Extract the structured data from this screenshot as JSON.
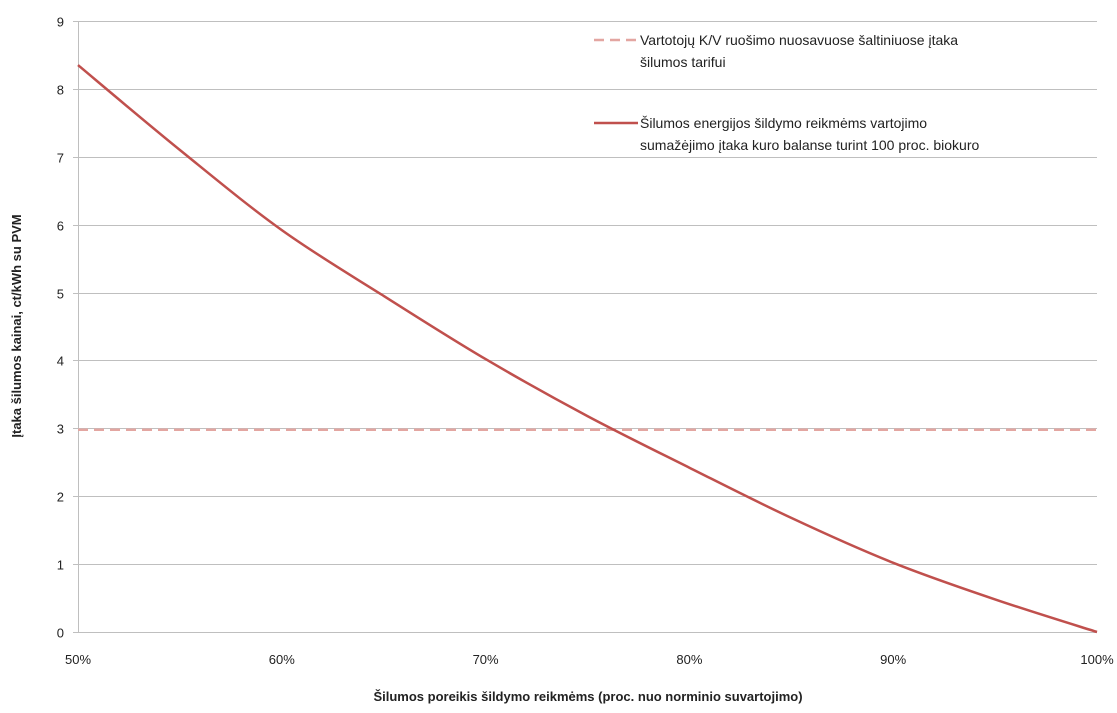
{
  "chart_data": {
    "type": "line",
    "title": "",
    "xlabel": "Šilumos poreikis šildymo reikmėms (proc. nuo norminio suvartojimo)",
    "ylabel": "Įtaka šilumos kainai, ct/kWh su PVM",
    "xlim": [
      50,
      100
    ],
    "ylim": [
      0,
      9
    ],
    "x_ticks": [
      50,
      60,
      70,
      80,
      90,
      100
    ],
    "x_tick_labels": [
      "50%",
      "60%",
      "70%",
      "80%",
      "90%",
      "100%"
    ],
    "y_ticks": [
      0,
      1,
      2,
      3,
      4,
      5,
      6,
      7,
      8,
      9
    ],
    "y_tick_labels": [
      "0",
      "1",
      "2",
      "3",
      "4",
      "5",
      "6",
      "7",
      "8",
      "9"
    ],
    "grid": "horizontal",
    "legend_position": "top-right",
    "series": [
      {
        "name_lines": [
          "Vartotojų K/V ruošimo nuosavuose šaltiniuose įtaka",
          "šilumos tarifui"
        ],
        "style": "dashed",
        "color": "#e3a6a1",
        "x": [
          50,
          100
        ],
        "y": [
          2.98,
          2.98
        ]
      },
      {
        "name_lines": [
          "Šilumos energijos šildymo reikmėms vartojimo",
          "sumažėjimo įtaka kuro balanse turint 100 proc. biokuro"
        ],
        "style": "solid",
        "color": "#c0504d",
        "x": [
          50,
          55,
          60,
          65,
          70,
          75,
          80,
          85,
          90,
          95,
          100
        ],
        "y": [
          8.35,
          7.1,
          5.92,
          4.95,
          4.02,
          3.18,
          2.42,
          1.68,
          1.02,
          0.48,
          0.0
        ]
      }
    ]
  }
}
